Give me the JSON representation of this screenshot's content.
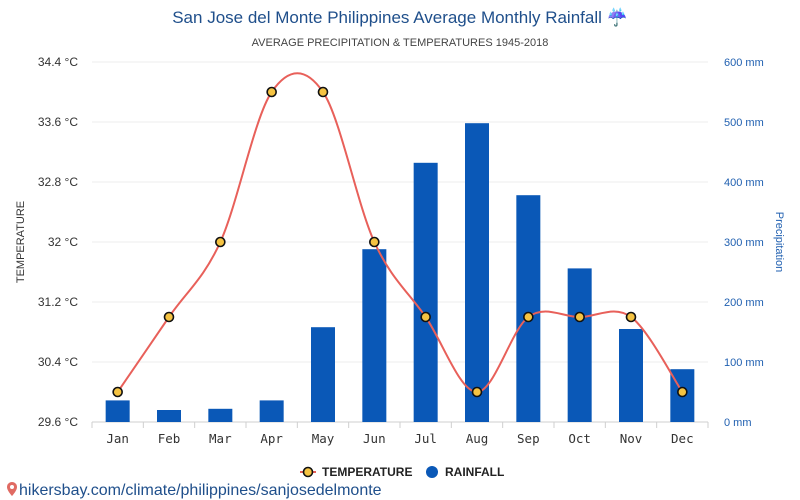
{
  "header": {
    "title": "San Jose del Monte Philippines Average Monthly Rainfall ☔",
    "subtitle": "AVERAGE PRECIPITATION & TEMPERATURES 1945-2018"
  },
  "footer": {
    "source": "hikersbay.com/climate/philippines/sanjosedelmonte"
  },
  "legend": {
    "temperature_label": "TEMPERATURE",
    "rainfall_label": "RAINFALL"
  },
  "chart_data": {
    "type": "bar",
    "title": "San Jose del Monte Philippines Average Monthly Rainfall ☔",
    "subtitle": "AVERAGE PRECIPITATION & TEMPERATURES 1945-2018",
    "categories": [
      "Jan",
      "Feb",
      "Mar",
      "Apr",
      "May",
      "Jun",
      "Jul",
      "Aug",
      "Sep",
      "Oct",
      "Nov",
      "Dec"
    ],
    "series": [
      {
        "name": "RAINFALL",
        "kind": "bar",
        "axis": "right",
        "color": "#0a58b7",
        "values": [
          36,
          20,
          22,
          36,
          158,
          288,
          432,
          498,
          378,
          256,
          155,
          88
        ]
      },
      {
        "name": "TEMPERATURE",
        "kind": "line",
        "axis": "left",
        "color": "#e8605a",
        "marker_fill": "#f5c342",
        "values": [
          30,
          31,
          32,
          34,
          34,
          32,
          31,
          30,
          31,
          31,
          31,
          30
        ]
      }
    ],
    "y_left": {
      "label": "TEMPERATURE",
      "ylim": [
        29.6,
        34.4
      ],
      "ticks": [
        29.6,
        30.4,
        31.2,
        32,
        32.8,
        33.6,
        34.4
      ],
      "tick_labels": [
        "29.6 °C",
        "30.4 °C",
        "31.2 °C",
        "32 °C",
        "32.8 °C",
        "33.6 °C",
        "34.4 °C"
      ]
    },
    "y_right": {
      "label": "Precipitation",
      "ylim": [
        0,
        600
      ],
      "ticks": [
        0,
        100,
        200,
        300,
        400,
        500,
        600
      ],
      "tick_labels": [
        "0 mm",
        "100 mm",
        "200 mm",
        "300 mm",
        "400 mm",
        "500 mm",
        "600 mm"
      ]
    },
    "grid": true,
    "legend_position": "bottom-center"
  }
}
